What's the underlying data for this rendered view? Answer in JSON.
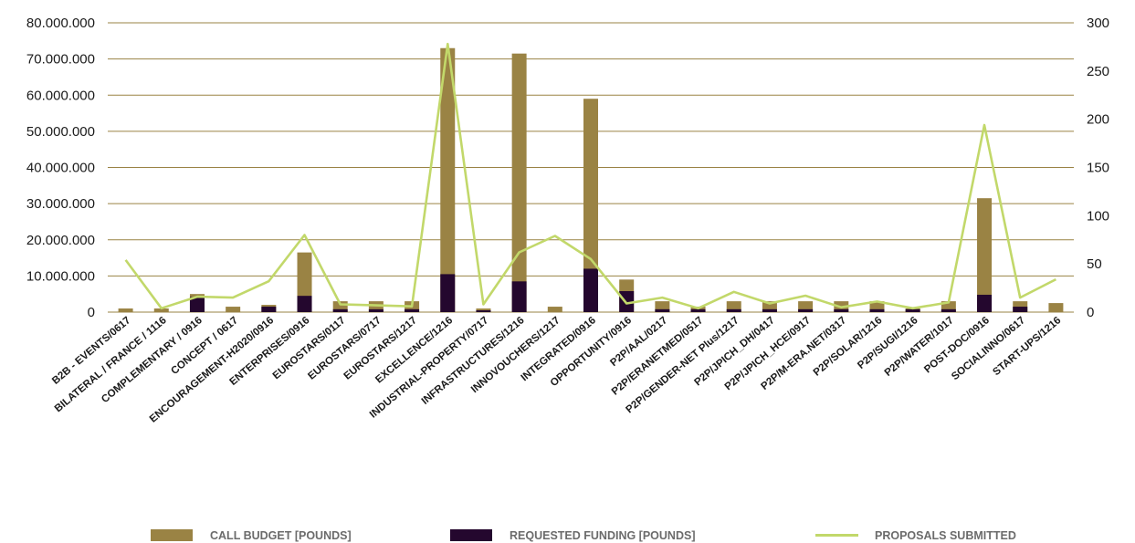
{
  "colors": {
    "budget": "#9a8344",
    "funding": "#24072e",
    "proposals": "#c2d86a",
    "grid": "#9a8344"
  },
  "chart_data": {
    "type": "bar",
    "categories": [
      "B2B - EVENTS/0617",
      "BILATERAL / FRANCE / 1116",
      "COMPLEMENTARY / 0916",
      "CONCEPT / 0617",
      "ENCOURAGEMENT-H2020/0916",
      "ENTERPRISES/0916",
      "EUROSTARS/0117",
      "EUROSTARS/0717",
      "EUROSTARS/1217",
      "EXCELLENCE/1216",
      "INDUSTRIAL-PROPERTY/0717",
      "INFRASTRUCTURES/1216",
      "INNOVOUCHERS/1217",
      "INTEGRATED/0916",
      "OPPORTUNITY/0916",
      "P2P/AAL/0217",
      "P2P/ERANETMED/0517",
      "P2P/GENDER-NET Plus/1217",
      "P2P/JPICH_DH/0417",
      "P2P/JPICH_HCE/0917",
      "P2P/M-ERA.NET/0317",
      "P2P/SOLAR/1216",
      "P2P/SUGI/1216",
      "P2P/WATER/1017",
      "POST-DOC/0916",
      "SOCIALINNO/0617",
      "START-UPS/1216"
    ],
    "series": [
      {
        "name": "CALL BUDGET [POUNDS]",
        "type": "bar",
        "axis": "left",
        "values": [
          1000000,
          1000000,
          5000000,
          1500000,
          2000000,
          16500000,
          3000000,
          3000000,
          3000000,
          73000000,
          1000000,
          71500000,
          1500000,
          59000000,
          9000000,
          3000000,
          1500000,
          3000000,
          3000000,
          3000000,
          3000000,
          3000000,
          1000000,
          3000000,
          31500000,
          3000000,
          2500000
        ]
      },
      {
        "name": "REQUESTED FUNDING [POUNDS]",
        "type": "bar",
        "axis": "left",
        "values": [
          0,
          0,
          4200000,
          0,
          1500000,
          4500000,
          800000,
          800000,
          800000,
          10500000,
          500000,
          8500000,
          0,
          12000000,
          5800000,
          800000,
          800000,
          800000,
          800000,
          800000,
          800000,
          800000,
          800000,
          800000,
          4800000,
          1500000,
          0
        ]
      },
      {
        "name": "PROPOSALS SUBMITTED",
        "type": "line",
        "axis": "right",
        "values": [
          54,
          4,
          16,
          15,
          32,
          80,
          8,
          7,
          6,
          278,
          8,
          62,
          79,
          55,
          9,
          15,
          4,
          21,
          9,
          17,
          5,
          11,
          4,
          10,
          194,
          15,
          34
        ]
      }
    ],
    "y_left": {
      "ylim": [
        0,
        80000000
      ],
      "ticks": [
        "0",
        "10.000.000",
        "20.000.000",
        "30.000.000",
        "40.000.000",
        "50.000.000",
        "60.000.000",
        "70.000.000",
        "80.000.000"
      ]
    },
    "y_right": {
      "ylim": [
        0,
        300
      ],
      "ticks": [
        "0",
        "50",
        "100",
        "150",
        "200",
        "250",
        "300"
      ]
    },
    "grid": true,
    "legend_position": "bottom"
  }
}
